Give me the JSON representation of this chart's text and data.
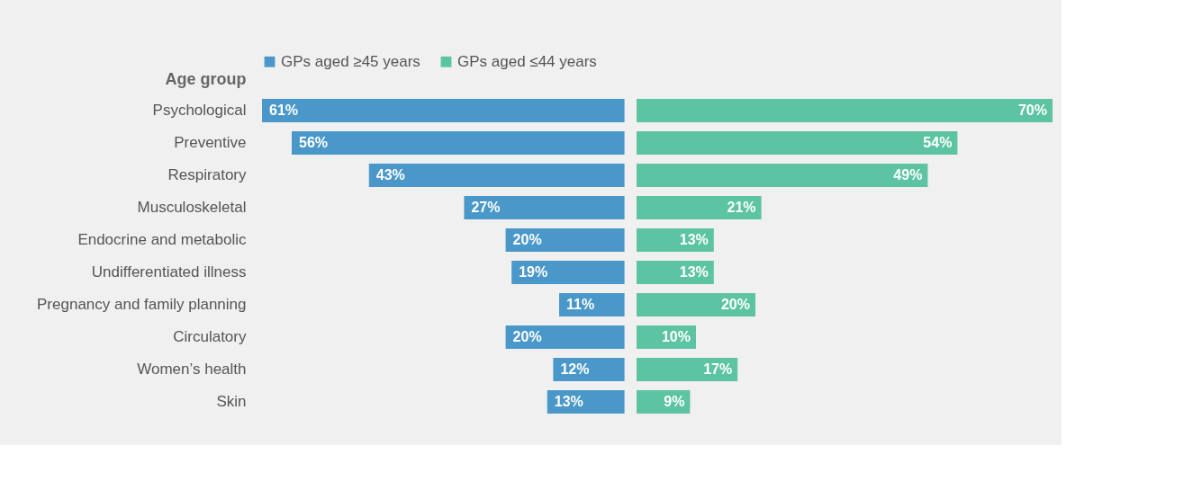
{
  "chart_data": [
    {
      "type": "bar",
      "orientation": "horizontal",
      "ylabel": "Age group",
      "legend": "top",
      "xlim": [
        61,
        0
      ],
      "tick_labels": "y",
      "categories": [
        "Psychological",
        "Preventive",
        "Respiratory",
        "Musculoskeletal",
        "Endocrine and metabolic",
        "Undifferentiated illness",
        "Pregnancy and family planning",
        "Circulatory",
        "Women’s health",
        "Skin"
      ],
      "series": [
        {
          "name": "GPs aged ≥45 years",
          "color": "#4a98c9",
          "values": [
            61,
            56,
            43,
            27,
            20,
            19,
            11,
            20,
            12,
            13
          ],
          "value_labels": [
            "61%",
            "56%",
            "43%",
            "27%",
            "20%",
            "19%",
            "11%",
            "20%",
            "12%",
            "13%"
          ]
        }
      ]
    },
    {
      "type": "bar",
      "orientation": "horizontal",
      "legend": "top",
      "xlim": [
        0,
        70
      ],
      "tick_labels": false,
      "categories": [
        null,
        null,
        null,
        null,
        null,
        null,
        null,
        null,
        null,
        null
      ],
      "series": [
        {
          "name": "GPs aged ≤44 years",
          "color": "#5cc4a2",
          "values": [
            70,
            54,
            49,
            21,
            13,
            13,
            20,
            10,
            17,
            9
          ],
          "value_labels": [
            "70%",
            "54%",
            "49%",
            "21%",
            "13%",
            "13%",
            "20%",
            "10%",
            "17%",
            "9%"
          ]
        }
      ]
    }
  ]
}
